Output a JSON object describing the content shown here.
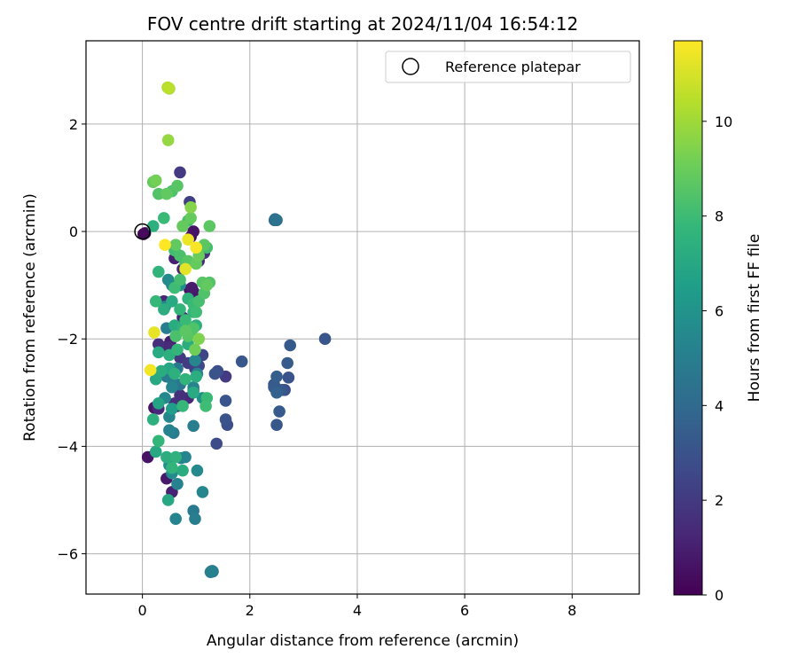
{
  "chart_data": {
    "type": "scatter",
    "title": "FOV centre drift starting at 2024/11/04 16:54:12",
    "xlabel": "Angular distance from reference (arcmin)",
    "ylabel": "Rotation from reference (arcmin)",
    "xlim": [
      -1.05,
      9.25
    ],
    "ylim": [
      -6.75,
      3.55
    ],
    "xticks": [
      0,
      2,
      4,
      6,
      8
    ],
    "yticks": [
      -6,
      -4,
      -2,
      0,
      2
    ],
    "xtick_labels": [
      "0",
      "2",
      "4",
      "6",
      "8"
    ],
    "ytick_labels": [
      "−6",
      "−4",
      "−2",
      "0",
      "2"
    ],
    "grid": true,
    "legend": {
      "placement": "top-right",
      "entries": [
        {
          "label": "Reference platepar",
          "marker": "hollow-circle"
        }
      ]
    },
    "reference_point": {
      "x": 0,
      "y": 0
    },
    "colorbar": {
      "label": "Hours from first FF file",
      "colormap": "viridis",
      "range": [
        0,
        11.7
      ],
      "ticks": [
        0,
        2,
        4,
        6,
        8,
        10
      ],
      "tick_labels": [
        "0",
        "2",
        "4",
        "6",
        "8",
        "10"
      ]
    },
    "colormap_stops": [
      "#440154",
      "#482878",
      "#3e4989",
      "#31688e",
      "#26828e",
      "#1f9e89",
      "#35b779",
      "#6ece58",
      "#b5de2b",
      "#fde725"
    ],
    "points": [
      [
        0.02,
        -0.05,
        0.1
      ],
      [
        0.05,
        -0.03,
        0.3
      ],
      [
        0.88,
        -1.08,
        0.5
      ],
      [
        0.95,
        -1.12,
        0.7
      ],
      [
        0.92,
        -1.05,
        0.9
      ],
      [
        0.95,
        0.0,
        0.6
      ],
      [
        0.9,
        -0.1,
        0.4
      ],
      [
        0.6,
        -0.5,
        1.0
      ],
      [
        0.75,
        -0.7,
        1.3
      ],
      [
        1.05,
        -0.55,
        1.5
      ],
      [
        0.7,
        1.1,
        2.0
      ],
      [
        0.88,
        0.55,
        2.2
      ],
      [
        1.15,
        -0.4,
        1.8
      ],
      [
        0.4,
        -1.3,
        1.2
      ],
      [
        0.5,
        -2.1,
        1.0
      ],
      [
        0.48,
        -2.15,
        1.4
      ],
      [
        0.3,
        -2.1,
        1.6
      ],
      [
        0.52,
        -2.05,
        0.8
      ],
      [
        0.75,
        -1.6,
        1.1
      ],
      [
        0.7,
        -2.35,
        1.9
      ],
      [
        0.85,
        -2.45,
        2.1
      ],
      [
        0.98,
        -2.55,
        2.3
      ],
      [
        1.05,
        -2.5,
        2.6
      ],
      [
        1.4,
        -2.6,
        2.8
      ],
      [
        1.35,
        -2.65,
        3.0
      ],
      [
        1.55,
        -2.7,
        2.0
      ],
      [
        0.85,
        -3.1,
        1.4
      ],
      [
        0.55,
        -3.3,
        0.9
      ],
      [
        0.6,
        -3.2,
        1.7
      ],
      [
        0.7,
        -3.05,
        1.6
      ],
      [
        0.65,
        -3.25,
        1.2
      ],
      [
        0.45,
        -4.6,
        0.8
      ],
      [
        0.55,
        -4.85,
        1.1
      ],
      [
        0.1,
        -4.2,
        0.6
      ],
      [
        0.3,
        -3.3,
        1.3
      ],
      [
        0.22,
        -3.28,
        0.7
      ],
      [
        1.12,
        -2.3,
        2.5
      ],
      [
        1.85,
        -2.42,
        3.2
      ],
      [
        2.75,
        -2.12,
        3.3
      ],
      [
        3.4,
        -2.0,
        3.1
      ],
      [
        2.7,
        -2.45,
        3.4
      ],
      [
        2.72,
        -2.72,
        3.0
      ],
      [
        2.5,
        -2.7,
        3.5
      ],
      [
        2.45,
        -2.85,
        3.2
      ],
      [
        2.55,
        -2.95,
        3.3
      ],
      [
        2.65,
        -2.95,
        2.8
      ],
      [
        2.6,
        -2.95,
        3.1
      ],
      [
        2.5,
        -3.0,
        3.6
      ],
      [
        2.45,
        -2.9,
        3.4
      ],
      [
        2.55,
        -3.35,
        3.3
      ],
      [
        2.5,
        -3.6,
        3.2
      ],
      [
        1.55,
        -3.5,
        3.0
      ],
      [
        1.58,
        -3.6,
        2.9
      ],
      [
        1.55,
        -3.15,
        3.1
      ],
      [
        1.38,
        -3.95,
        2.7
      ],
      [
        2.48,
        0.22,
        4.1
      ],
      [
        2.47,
        0.23,
        4.2
      ],
      [
        2.5,
        0.21,
        4.3
      ],
      [
        2.48,
        0.22,
        4.4
      ],
      [
        2.46,
        0.21,
        4.0
      ],
      [
        1.28,
        -6.33,
        4.5
      ],
      [
        1.3,
        -6.32,
        4.7
      ],
      [
        1.27,
        -6.34,
        4.9
      ],
      [
        1.29,
        -6.33,
        5.1
      ],
      [
        1.31,
        -6.33,
        4.3
      ],
      [
        0.62,
        -5.35,
        5.3
      ],
      [
        0.98,
        -5.35,
        5.0
      ],
      [
        0.95,
        -5.2,
        4.8
      ],
      [
        1.12,
        -4.85,
        5.4
      ],
      [
        1.02,
        -4.45,
        5.5
      ],
      [
        0.65,
        -4.7,
        5.2
      ],
      [
        0.8,
        -4.2,
        5.3
      ],
      [
        0.72,
        -4.22,
        5.1
      ],
      [
        0.55,
        -4.5,
        5.6
      ],
      [
        0.5,
        -4.35,
        5.8
      ],
      [
        0.95,
        -3.62,
        5.0
      ],
      [
        0.58,
        -3.75,
        4.9
      ],
      [
        0.5,
        -3.7,
        5.2
      ],
      [
        0.5,
        -3.45,
        5.4
      ],
      [
        0.42,
        -3.1,
        5.5
      ],
      [
        0.55,
        -2.9,
        5.3
      ],
      [
        0.45,
        -2.7,
        4.8
      ],
      [
        0.55,
        -2.75,
        5.0
      ],
      [
        0.7,
        -2.85,
        4.6
      ],
      [
        0.95,
        -2.9,
        5.3
      ],
      [
        0.95,
        -2.95,
        5.1
      ],
      [
        1.02,
        -2.65,
        5.2
      ],
      [
        0.98,
        -2.4,
        5.4
      ],
      [
        1.12,
        -3.1,
        5.7
      ],
      [
        0.65,
        -2.55,
        4.7
      ],
      [
        0.45,
        -1.8,
        5.0
      ],
      [
        0.42,
        -1.4,
        5.2
      ],
      [
        0.55,
        -1.0,
        5.4
      ],
      [
        0.48,
        -0.9,
        5.6
      ],
      [
        0.7,
        -1.0,
        5.8
      ],
      [
        0.55,
        -3.3,
        6.5
      ],
      [
        0.3,
        -3.2,
        6.8
      ],
      [
        0.25,
        -2.75,
        7.0
      ],
      [
        0.35,
        -2.6,
        7.2
      ],
      [
        0.6,
        -2.65,
        7.4
      ],
      [
        0.5,
        -2.55,
        6.9
      ],
      [
        0.8,
        -2.75,
        7.6
      ],
      [
        1.0,
        -2.7,
        7.3
      ],
      [
        0.75,
        -3.25,
        7.8
      ],
      [
        0.95,
        -3.0,
        7.1
      ],
      [
        1.2,
        -3.1,
        7.9
      ],
      [
        1.18,
        -3.25,
        8.0
      ],
      [
        0.2,
        -3.5,
        7.4
      ],
      [
        0.3,
        -3.9,
        7.7
      ],
      [
        0.25,
        -4.1,
        7.0
      ],
      [
        0.45,
        -4.2,
        7.3
      ],
      [
        0.55,
        -4.4,
        7.6
      ],
      [
        0.75,
        -4.45,
        7.2
      ],
      [
        0.48,
        -5.0,
        7.0
      ],
      [
        0.62,
        -4.2,
        7.5
      ],
      [
        0.3,
        -2.25,
        7.1
      ],
      [
        0.5,
        -2.3,
        7.4
      ],
      [
        0.65,
        -2.2,
        7.7
      ],
      [
        0.85,
        -2.1,
        7.3
      ],
      [
        0.9,
        -1.9,
        7.8
      ],
      [
        0.75,
        -1.8,
        7.5
      ],
      [
        0.6,
        -1.75,
        7.2
      ],
      [
        0.8,
        -1.65,
        7.9
      ],
      [
        1.0,
        -1.75,
        7.4
      ],
      [
        0.95,
        -1.5,
        7.6
      ],
      [
        0.7,
        -1.45,
        7.7
      ],
      [
        0.55,
        -1.3,
        7.1
      ],
      [
        0.4,
        -1.45,
        7.3
      ],
      [
        0.25,
        -1.3,
        7.8
      ],
      [
        0.85,
        -1.25,
        7.5
      ],
      [
        0.95,
        -1.35,
        7.9
      ],
      [
        0.6,
        -1.05,
        8.0
      ],
      [
        0.7,
        -0.9,
        8.2
      ],
      [
        0.8,
        -0.6,
        8.3
      ],
      [
        0.3,
        -0.75,
        7.6
      ],
      [
        0.85,
        0.2,
        8.1
      ],
      [
        0.4,
        0.25,
        7.9
      ],
      [
        0.2,
        0.1,
        7.4
      ],
      [
        0.3,
        0.7,
        8.5
      ],
      [
        0.45,
        0.7,
        8.8
      ],
      [
        0.55,
        0.75,
        8.4
      ],
      [
        0.65,
        0.85,
        8.6
      ],
      [
        0.2,
        0.92,
        8.9
      ],
      [
        0.25,
        0.95,
        9.2
      ],
      [
        1.25,
        0.1,
        8.7
      ],
      [
        0.75,
        0.1,
        8.9
      ],
      [
        0.62,
        -0.25,
        8.8
      ],
      [
        0.6,
        -0.35,
        8.1
      ],
      [
        0.7,
        -0.45,
        8.3
      ],
      [
        0.85,
        -0.55,
        8.6
      ],
      [
        1.0,
        -0.6,
        8.9
      ],
      [
        1.05,
        -0.45,
        9.0
      ],
      [
        1.15,
        -0.25,
        8.7
      ],
      [
        1.2,
        -0.3,
        8.2
      ],
      [
        1.12,
        -0.95,
        8.6
      ],
      [
        1.2,
        -1.0,
        8.8
      ],
      [
        1.15,
        -1.15,
        8.4
      ],
      [
        1.25,
        -0.95,
        8.5
      ],
      [
        1.05,
        -1.3,
        8.2
      ],
      [
        1.0,
        -1.5,
        8.0
      ],
      [
        0.95,
        -1.8,
        8.4
      ],
      [
        0.85,
        -1.95,
        8.6
      ],
      [
        0.8,
        -1.85,
        8.7
      ],
      [
        0.62,
        -1.95,
        8.3
      ],
      [
        1.05,
        -2.0,
        9.4
      ],
      [
        0.98,
        -2.2,
        9.1
      ],
      [
        0.9,
        0.45,
        9.5
      ],
      [
        0.9,
        0.25,
        8.9
      ],
      [
        0.48,
        1.7,
        9.8
      ],
      [
        0.47,
        2.68,
        10.2
      ],
      [
        0.49,
        2.67,
        10.5
      ],
      [
        0.5,
        2.66,
        9.9
      ],
      [
        1.0,
        -0.3,
        11.6
      ],
      [
        0.85,
        -0.15,
        11.4
      ],
      [
        0.42,
        -0.25,
        11.7
      ],
      [
        0.22,
        -1.88,
        11.3
      ],
      [
        0.15,
        -2.58,
        11.5
      ],
      [
        0.8,
        -0.7,
        11.2
      ]
    ]
  }
}
